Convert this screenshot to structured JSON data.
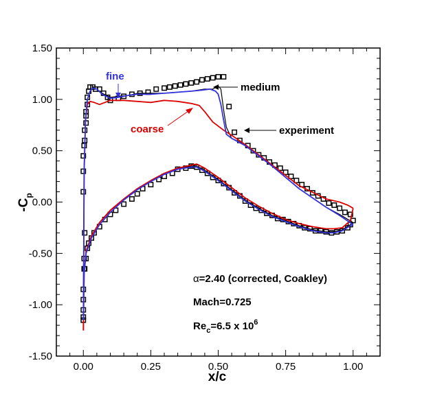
{
  "chart_data": {
    "type": "line",
    "xlabel_main": "x/c",
    "ylabel_main": "-C",
    "ylabel_sub": "p",
    "xlim": [
      -0.1,
      1.1
    ],
    "ylim": [
      -1.5,
      1.5
    ],
    "x_ticks": [
      "0.00",
      "0.25",
      "0.50",
      "0.75",
      "1.00"
    ],
    "y_ticks": [
      "1.50",
      "1.00",
      "0.50",
      "0.00",
      "-0.50",
      "-1.00",
      "-1.50"
    ],
    "colors": {
      "fine": "#3333dd",
      "medium": "#000000",
      "coarse": "#dd0000",
      "experiment": "#000000"
    },
    "annotations": {
      "fine": "fine",
      "medium": "medium",
      "coarse": "coarse",
      "experiment": "experiment"
    },
    "info": {
      "alpha_symbol": "α",
      "alpha_text": "=2.40 (corrected, Coakley)",
      "mach": "Mach=0.725",
      "re_main": "Re",
      "re_sub": "c",
      "re_value": "=6.5 x 10",
      "re_sup": "6"
    },
    "series": [
      {
        "key": "medium",
        "upper": [
          [
            0.0,
            -1.05
          ],
          [
            0.003,
            0.3
          ],
          [
            0.008,
            0.8
          ],
          [
            0.015,
            1.0
          ],
          [
            0.025,
            1.08
          ],
          [
            0.035,
            1.11
          ],
          [
            0.05,
            1.1
          ],
          [
            0.07,
            1.06
          ],
          [
            0.1,
            1.02
          ],
          [
            0.13,
            1.03
          ],
          [
            0.17,
            1.04
          ],
          [
            0.2,
            1.06
          ],
          [
            0.25,
            1.06
          ],
          [
            0.3,
            1.06
          ],
          [
            0.35,
            1.07
          ],
          [
            0.4,
            1.08
          ],
          [
            0.45,
            1.1
          ],
          [
            0.48,
            1.1
          ],
          [
            0.5,
            1.13
          ],
          [
            0.51,
            1.1
          ],
          [
            0.52,
            0.9
          ],
          [
            0.53,
            0.73
          ],
          [
            0.55,
            0.62
          ],
          [
            0.6,
            0.56
          ],
          [
            0.7,
            0.35
          ],
          [
            0.8,
            0.13
          ],
          [
            0.9,
            -0.05
          ],
          [
            0.95,
            -0.12
          ],
          [
            1.0,
            -0.2
          ]
        ],
        "lower": [
          [
            0.0,
            -1.05
          ],
          [
            0.003,
            -0.7
          ],
          [
            0.01,
            -0.5
          ],
          [
            0.03,
            -0.35
          ],
          [
            0.06,
            -0.22
          ],
          [
            0.1,
            -0.1
          ],
          [
            0.15,
            0.02
          ],
          [
            0.2,
            0.12
          ],
          [
            0.25,
            0.2
          ],
          [
            0.3,
            0.27
          ],
          [
            0.35,
            0.32
          ],
          [
            0.4,
            0.35
          ],
          [
            0.42,
            0.35
          ],
          [
            0.45,
            0.31
          ],
          [
            0.5,
            0.22
          ],
          [
            0.55,
            0.12
          ],
          [
            0.6,
            0.02
          ],
          [
            0.65,
            -0.06
          ],
          [
            0.7,
            -0.13
          ],
          [
            0.75,
            -0.18
          ],
          [
            0.8,
            -0.23
          ],
          [
            0.85,
            -0.27
          ],
          [
            0.9,
            -0.29
          ],
          [
            0.93,
            -0.29
          ],
          [
            0.96,
            -0.27
          ],
          [
            0.99,
            -0.22
          ],
          [
            1.0,
            -0.2
          ]
        ]
      },
      {
        "key": "fine",
        "upper": [
          [
            0.0,
            -1.15
          ],
          [
            0.003,
            0.3
          ],
          [
            0.008,
            0.8
          ],
          [
            0.015,
            1.0
          ],
          [
            0.025,
            1.08
          ],
          [
            0.035,
            1.11
          ],
          [
            0.05,
            1.1
          ],
          [
            0.07,
            1.05
          ],
          [
            0.1,
            1.01
          ],
          [
            0.13,
            1.02
          ],
          [
            0.17,
            1.04
          ],
          [
            0.2,
            1.05
          ],
          [
            0.25,
            1.05
          ],
          [
            0.3,
            1.06
          ],
          [
            0.35,
            1.07
          ],
          [
            0.4,
            1.08
          ],
          [
            0.44,
            1.09
          ],
          [
            0.47,
            1.1
          ],
          [
            0.49,
            1.08
          ],
          [
            0.5,
            1.05
          ],
          [
            0.51,
            0.95
          ],
          [
            0.52,
            0.8
          ],
          [
            0.53,
            0.66
          ],
          [
            0.55,
            0.62
          ],
          [
            0.6,
            0.55
          ],
          [
            0.7,
            0.35
          ],
          [
            0.8,
            0.13
          ],
          [
            0.9,
            -0.05
          ],
          [
            0.95,
            -0.13
          ],
          [
            1.0,
            -0.22
          ]
        ],
        "lower": [
          [
            0.0,
            -1.15
          ],
          [
            0.003,
            -0.7
          ],
          [
            0.01,
            -0.5
          ],
          [
            0.03,
            -0.35
          ],
          [
            0.06,
            -0.22
          ],
          [
            0.1,
            -0.1
          ],
          [
            0.15,
            0.02
          ],
          [
            0.2,
            0.12
          ],
          [
            0.25,
            0.2
          ],
          [
            0.3,
            0.27
          ],
          [
            0.35,
            0.32
          ],
          [
            0.4,
            0.34
          ],
          [
            0.42,
            0.34
          ],
          [
            0.45,
            0.3
          ],
          [
            0.5,
            0.21
          ],
          [
            0.55,
            0.11
          ],
          [
            0.6,
            0.01
          ],
          [
            0.65,
            -0.07
          ],
          [
            0.7,
            -0.14
          ],
          [
            0.75,
            -0.19
          ],
          [
            0.8,
            -0.24
          ],
          [
            0.85,
            -0.28
          ],
          [
            0.9,
            -0.3
          ],
          [
            0.93,
            -0.3
          ],
          [
            0.96,
            -0.28
          ],
          [
            0.99,
            -0.23
          ],
          [
            1.0,
            -0.22
          ]
        ]
      },
      {
        "key": "coarse",
        "upper": [
          [
            0.0,
            -1.25
          ],
          [
            0.003,
            0.3
          ],
          [
            0.008,
            0.8
          ],
          [
            0.015,
            0.95
          ],
          [
            0.025,
            0.98
          ],
          [
            0.04,
            0.97
          ],
          [
            0.06,
            0.95
          ],
          [
            0.08,
            0.97
          ],
          [
            0.1,
            0.99
          ],
          [
            0.15,
            0.99
          ],
          [
            0.2,
            0.98
          ],
          [
            0.25,
            0.97
          ],
          [
            0.3,
            0.99
          ],
          [
            0.35,
            0.98
          ],
          [
            0.4,
            0.96
          ],
          [
            0.43,
            0.94
          ],
          [
            0.45,
            0.88
          ],
          [
            0.48,
            0.78
          ],
          [
            0.52,
            0.7
          ],
          [
            0.55,
            0.65
          ],
          [
            0.6,
            0.56
          ],
          [
            0.7,
            0.36
          ],
          [
            0.8,
            0.16
          ],
          [
            0.9,
            0.03
          ],
          [
            0.95,
            0.0
          ],
          [
            0.98,
            -0.03
          ],
          [
            1.0,
            -0.06
          ]
        ],
        "lower": [
          [
            0.0,
            -1.25
          ],
          [
            0.003,
            -0.7
          ],
          [
            0.01,
            -0.48
          ],
          [
            0.03,
            -0.33
          ],
          [
            0.06,
            -0.2
          ],
          [
            0.1,
            -0.08
          ],
          [
            0.15,
            0.03
          ],
          [
            0.2,
            0.13
          ],
          [
            0.25,
            0.21
          ],
          [
            0.3,
            0.28
          ],
          [
            0.35,
            0.33
          ],
          [
            0.4,
            0.36
          ],
          [
            0.42,
            0.37
          ],
          [
            0.45,
            0.33
          ],
          [
            0.5,
            0.24
          ],
          [
            0.55,
            0.14
          ],
          [
            0.6,
            0.04
          ],
          [
            0.65,
            -0.04
          ],
          [
            0.7,
            -0.11
          ],
          [
            0.75,
            -0.17
          ],
          [
            0.8,
            -0.21
          ],
          [
            0.85,
            -0.24
          ],
          [
            0.9,
            -0.26
          ],
          [
            0.93,
            -0.26
          ],
          [
            0.96,
            -0.25
          ],
          [
            0.99,
            -0.18
          ],
          [
            1.0,
            -0.06
          ]
        ]
      }
    ],
    "experiment": [
      [
        0.0,
        -1.15
      ],
      [
        0.0,
        -1.05
      ],
      [
        0.0,
        -0.95
      ],
      [
        0.0,
        -0.85
      ],
      [
        0.003,
        -0.65
      ],
      [
        0.003,
        -0.55
      ],
      [
        0.005,
        -0.3
      ],
      [
        0.0,
        0.1
      ],
      [
        0.0,
        0.3
      ],
      [
        0.0,
        0.45
      ],
      [
        0.003,
        0.55
      ],
      [
        0.005,
        0.6
      ],
      [
        0.005,
        0.7
      ],
      [
        0.01,
        0.77
      ],
      [
        0.01,
        0.84
      ],
      [
        0.01,
        0.88
      ],
      [
        0.015,
        0.95
      ],
      [
        0.015,
        1.02
      ],
      [
        0.02,
        1.08
      ],
      [
        0.025,
        1.12
      ],
      [
        0.035,
        1.12
      ],
      [
        0.045,
        1.1
      ],
      [
        0.06,
        1.1
      ],
      [
        0.075,
        1.06
      ],
      [
        0.09,
        1.02
      ],
      [
        0.1,
        0.99
      ],
      [
        0.13,
        1.01
      ],
      [
        0.15,
        1.03
      ],
      [
        0.18,
        1.05
      ],
      [
        0.21,
        1.06
      ],
      [
        0.24,
        1.07
      ],
      [
        0.27,
        1.1
      ],
      [
        0.3,
        1.11
      ],
      [
        0.32,
        1.12
      ],
      [
        0.34,
        1.13
      ],
      [
        0.36,
        1.14
      ],
      [
        0.38,
        1.15
      ],
      [
        0.4,
        1.16
      ],
      [
        0.42,
        1.17
      ],
      [
        0.44,
        1.19
      ],
      [
        0.46,
        1.2
      ],
      [
        0.48,
        1.21
      ],
      [
        0.5,
        1.22
      ],
      [
        0.52,
        1.22
      ],
      [
        0.54,
        0.93
      ],
      [
        0.56,
        0.68
      ],
      [
        0.58,
        0.6
      ],
      [
        0.61,
        0.55
      ],
      [
        0.63,
        0.5
      ],
      [
        0.65,
        0.46
      ],
      [
        0.67,
        0.43
      ],
      [
        0.69,
        0.39
      ],
      [
        0.71,
        0.36
      ],
      [
        0.73,
        0.33
      ],
      [
        0.75,
        0.29
      ],
      [
        0.77,
        0.25
      ],
      [
        0.79,
        0.21
      ],
      [
        0.81,
        0.17
      ],
      [
        0.83,
        0.13
      ],
      [
        0.85,
        0.09
      ],
      [
        0.87,
        0.06
      ],
      [
        0.89,
        0.03
      ],
      [
        0.91,
        -0.01
      ],
      [
        0.93,
        -0.03
      ],
      [
        0.95,
        -0.06
      ],
      [
        0.97,
        -0.1
      ],
      [
        0.99,
        -0.12
      ],
      [
        1.0,
        -0.18
      ],
      [
        0.0,
        -1.12
      ],
      [
        0.005,
        -0.65
      ],
      [
        0.01,
        -0.55
      ],
      [
        0.015,
        -0.45
      ],
      [
        0.02,
        -0.4
      ],
      [
        0.03,
        -0.35
      ],
      [
        0.04,
        -0.3
      ],
      [
        0.06,
        -0.24
      ],
      [
        0.08,
        -0.17
      ],
      [
        0.1,
        -0.12
      ],
      [
        0.12,
        -0.08
      ],
      [
        0.15,
        -0.02
      ],
      [
        0.18,
        0.03
      ],
      [
        0.2,
        0.08
      ],
      [
        0.22,
        0.13
      ],
      [
        0.25,
        0.17
      ],
      [
        0.28,
        0.22
      ],
      [
        0.3,
        0.25
      ],
      [
        0.33,
        0.28
      ],
      [
        0.35,
        0.32
      ],
      [
        0.38,
        0.33
      ],
      [
        0.4,
        0.35
      ],
      [
        0.42,
        0.34
      ],
      [
        0.44,
        0.31
      ],
      [
        0.46,
        0.28
      ],
      [
        0.48,
        0.24
      ],
      [
        0.5,
        0.21
      ],
      [
        0.52,
        0.18
      ],
      [
        0.54,
        0.14
      ],
      [
        0.56,
        0.09
      ],
      [
        0.58,
        0.06
      ],
      [
        0.6,
        0.01
      ],
      [
        0.62,
        -0.03
      ],
      [
        0.64,
        -0.06
      ],
      [
        0.66,
        -0.08
      ],
      [
        0.68,
        -0.11
      ],
      [
        0.7,
        -0.13
      ],
      [
        0.72,
        -0.16
      ],
      [
        0.74,
        -0.17
      ],
      [
        0.76,
        -0.19
      ],
      [
        0.78,
        -0.21
      ],
      [
        0.8,
        -0.23
      ],
      [
        0.82,
        -0.25
      ],
      [
        0.84,
        -0.26
      ],
      [
        0.86,
        -0.28
      ],
      [
        0.88,
        -0.28
      ],
      [
        0.9,
        -0.29
      ],
      [
        0.92,
        -0.3
      ],
      [
        0.94,
        -0.29
      ],
      [
        0.96,
        -0.28
      ],
      [
        0.98,
        -0.25
      ],
      [
        0.99,
        -0.22
      ]
    ]
  }
}
